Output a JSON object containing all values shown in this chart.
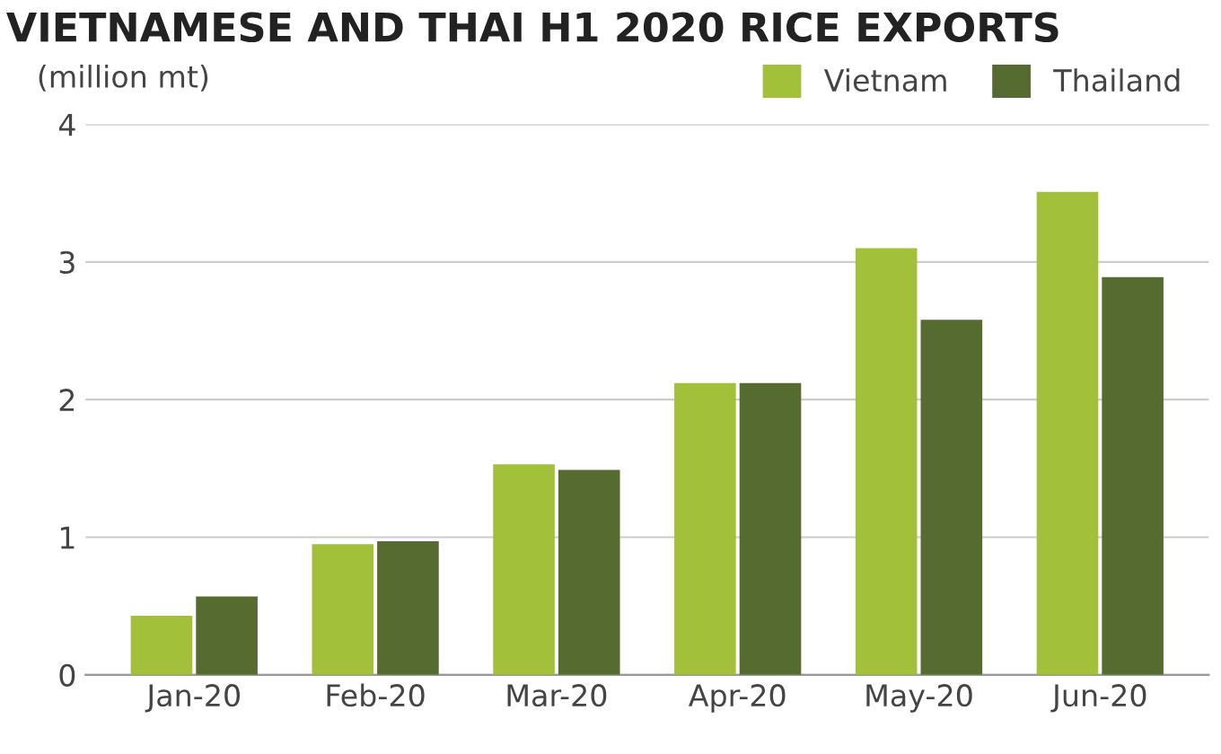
{
  "chart_data": {
    "type": "bar",
    "title": "VIETNAMESE AND THAI H1 2020 RICE EXPORTS",
    "ylabel": "(million mt)",
    "categories": [
      "Jan-20",
      "Feb-20",
      "Mar-20",
      "Apr-20",
      "May-20",
      "Jun-20"
    ],
    "series": [
      {
        "name": "Vietnam",
        "color": "#a3c03b",
        "values": [
          0.43,
          0.95,
          1.53,
          2.12,
          3.1,
          3.51
        ]
      },
      {
        "name": "Thailand",
        "color": "#566b2f",
        "values": [
          0.57,
          0.97,
          1.49,
          2.12,
          2.58,
          2.89
        ]
      }
    ],
    "ylim": [
      0,
      4
    ],
    "yticks": [
      0,
      1,
      2,
      3,
      4
    ],
    "grid": "y",
    "legend": "top right"
  }
}
